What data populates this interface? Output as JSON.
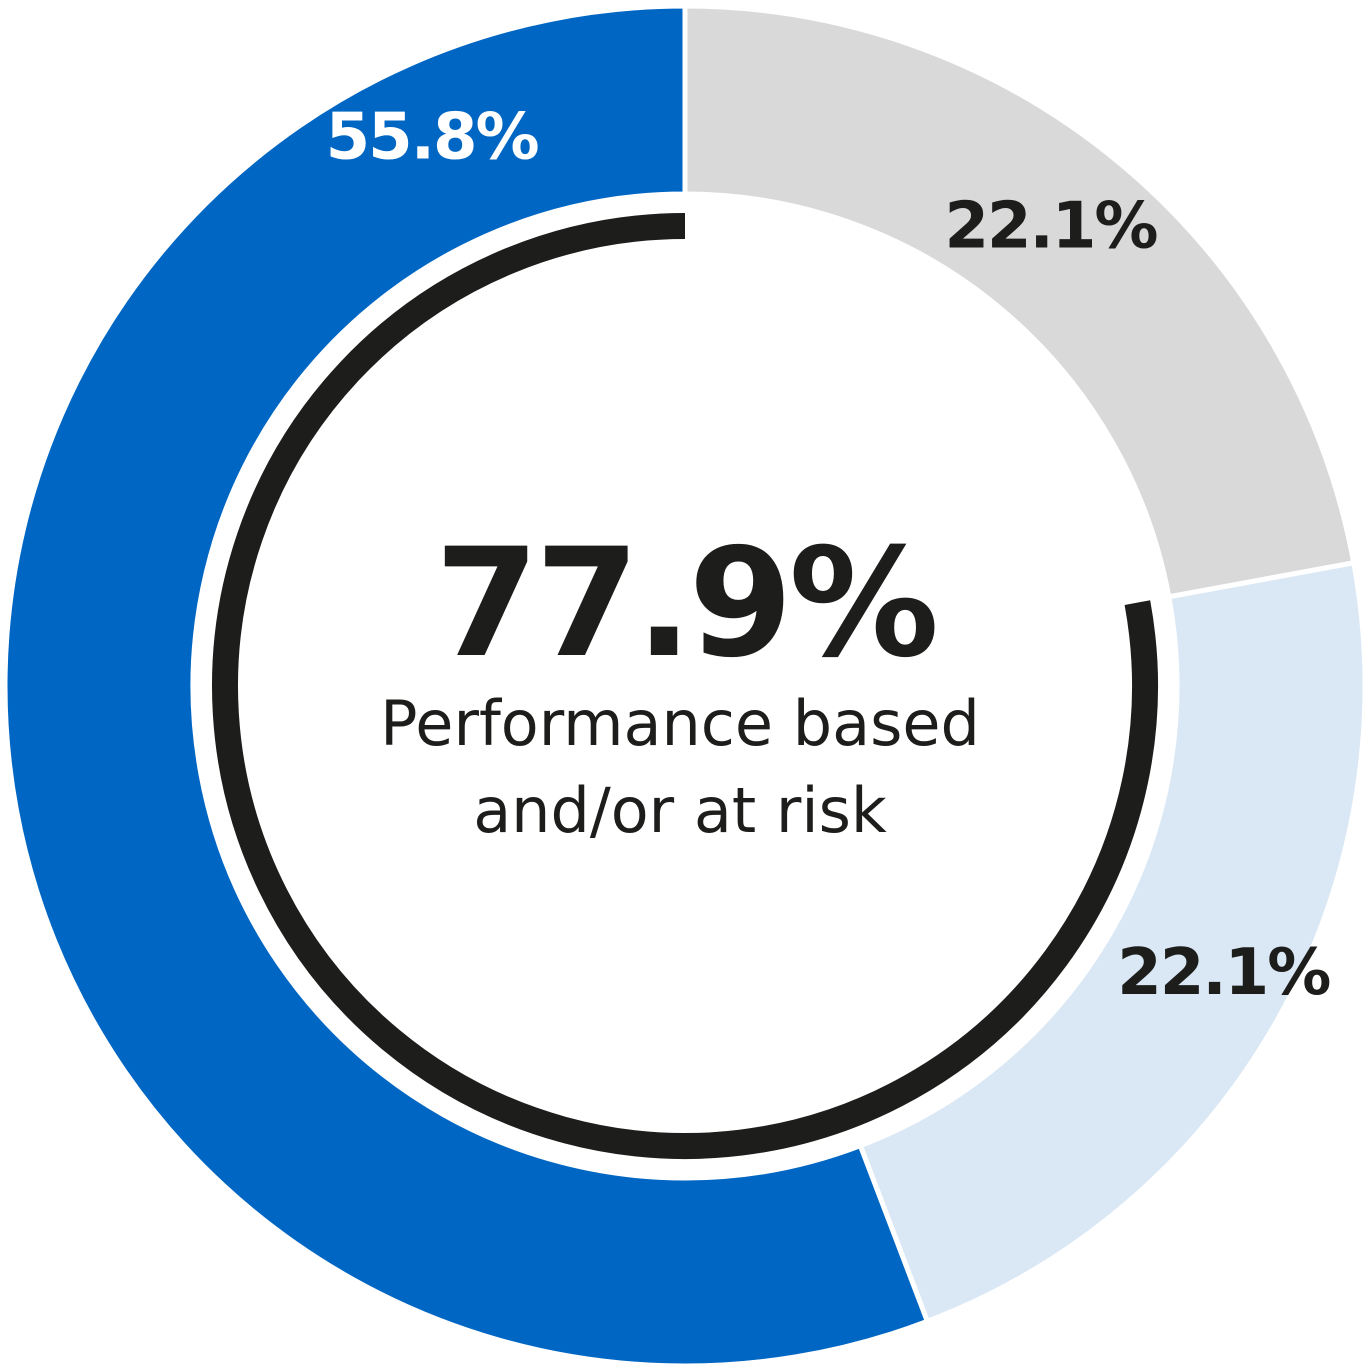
{
  "chart_data": {
    "type": "pie",
    "donut": true,
    "slices": [
      {
        "value": 22.1,
        "label": "22.1%",
        "color": "#d9d9d9",
        "label_color": "#1d1d1b"
      },
      {
        "value": 22.1,
        "label": "22.1%",
        "color": "#dae8f5",
        "label_color": "#1d1d1b"
      },
      {
        "value": 55.8,
        "label": "55.8%",
        "color": "#0066c3",
        "label_color": "#ffffff"
      }
    ],
    "highlight_arc": {
      "value": 77.9,
      "color": "#1d1d1b"
    },
    "center": {
      "value_label": "77.9%",
      "caption_lines": [
        "Performance based",
        "and/or at risk"
      ]
    }
  }
}
